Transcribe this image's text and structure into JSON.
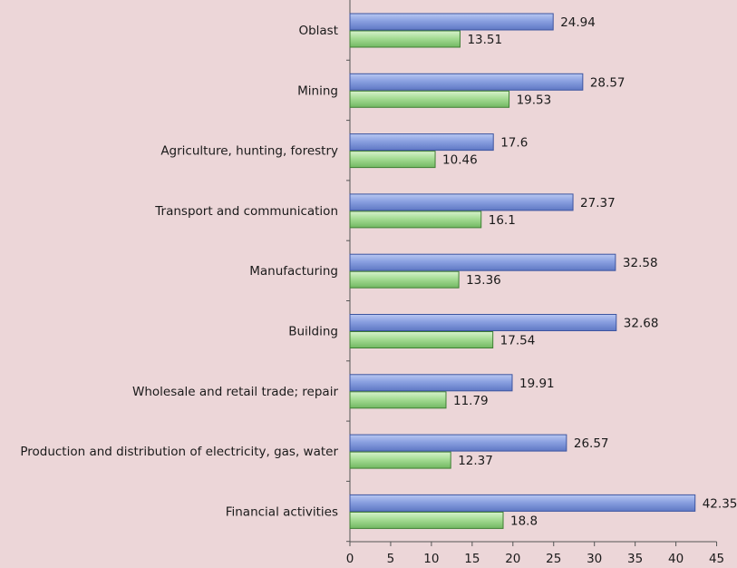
{
  "chart_data": {
    "type": "bar",
    "orientation": "horizontal",
    "categories": [
      "Oblast",
      "Mining",
      "Agriculture, hunting, forestry",
      "Transport and communication",
      "Manufacturing",
      "Building",
      "Wholesale and retail trade; repair",
      "Production and distribution of electricity, gas, water",
      "Financial activities"
    ],
    "series": [
      {
        "values": [
          24.94,
          28.57,
          17.6,
          27.37,
          32.58,
          32.68,
          19.91,
          26.57,
          42.35
        ],
        "color": "#7b93d8"
      },
      {
        "values": [
          13.51,
          19.53,
          10.46,
          16.1,
          13.36,
          17.54,
          11.79,
          12.37,
          18.8
        ],
        "color": "#9fd68f"
      }
    ],
    "value_labels": [
      [
        "24.94",
        "28.57",
        "17.6",
        "27.37",
        "32.58",
        "32.68",
        "19.91",
        "26.57",
        "42.35"
      ],
      [
        "13.51",
        "19.53",
        "10.46",
        "16.1",
        "13.36",
        "17.54",
        "11.79",
        "12.37",
        "18.8"
      ]
    ],
    "x_ticks": [
      "0",
      "5",
      "10",
      "15",
      "20",
      "25",
      "30",
      "35",
      "40",
      "45"
    ],
    "xlim": [
      0,
      45
    ],
    "grid": false,
    "legend": "none",
    "title": "",
    "xlabel": "",
    "ylabel": ""
  },
  "colors": {
    "background": "#ecd6d8",
    "axis": "#555555"
  }
}
